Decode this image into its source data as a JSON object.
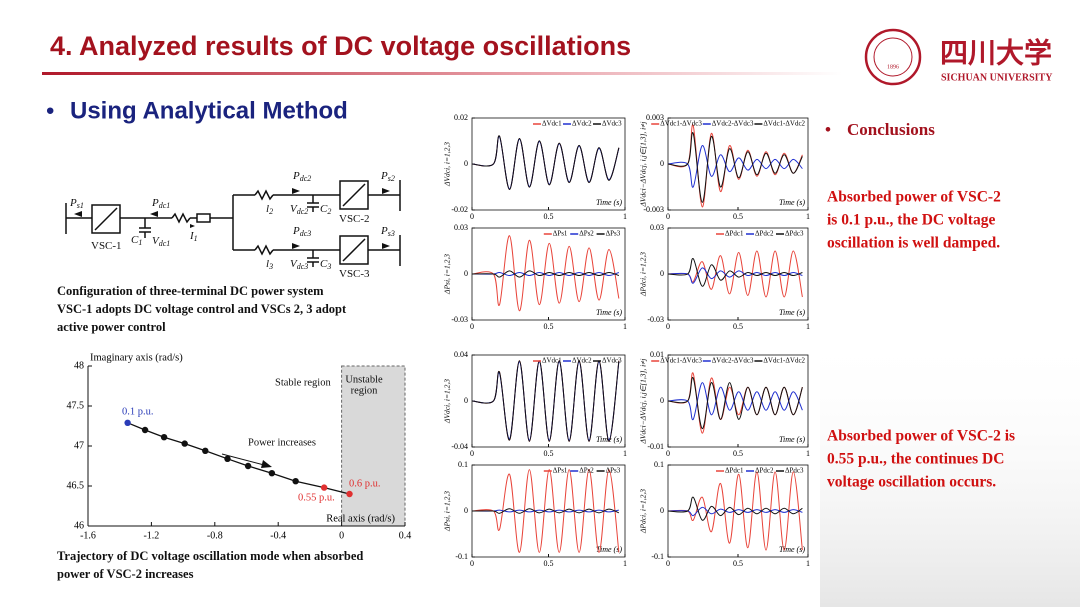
{
  "header": {
    "title": "4. Analyzed results of DC voltage oscillations",
    "logo_cn": "四川大学",
    "logo_en": "SICHUAN UNIVERSITY",
    "seal_year": "1896"
  },
  "bullet": "Using Analytical Method",
  "circuit": {
    "labels": [
      {
        "base": "P",
        "sub": "s1"
      },
      {
        "base": "P",
        "sub": "dc1"
      },
      {
        "base": "C",
        "sub": "1"
      },
      {
        "base": "V",
        "sub": "dc1"
      },
      {
        "base": "I",
        "sub": "1"
      },
      {
        "base": "VSC-1"
      },
      {
        "base": "P",
        "sub": "dc2"
      },
      {
        "base": "P",
        "sub": "s2"
      },
      {
        "base": "l",
        "sub": "2"
      },
      {
        "base": "V",
        "sub": "dc2"
      },
      {
        "base": "C",
        "sub": "2"
      },
      {
        "base": "VSC-2"
      },
      {
        "base": "P",
        "sub": "dc3"
      },
      {
        "base": "P",
        "sub": "s3"
      },
      {
        "base": "l",
        "sub": "3"
      },
      {
        "base": "V",
        "sub": "dc3"
      },
      {
        "base": "C",
        "sub": "3"
      },
      {
        "base": "VSC-3"
      }
    ]
  },
  "config_caption": [
    "Configuration of three-terminal DC power system",
    "VSC-1 adopts DC voltage control and VSCs 2, 3 adopt",
    "active power control"
  ],
  "trajectory_caption": [
    "Trajectory of DC voltage oscillation mode when absorbed",
    "power of VSC-2 increases"
  ],
  "conclusions": {
    "heading": "Conclusions",
    "first": [
      "Absorbed power of VSC-2",
      "is 0.1 p.u., the DC voltage",
      "oscillation is well damped."
    ],
    "second": [
      "Absorbed power of VSC-2 is",
      "0.55 p.u., the continues DC",
      "voltage oscillation occurs."
    ]
  },
  "chart_data": [
    {
      "type": "scatter",
      "ylabel": "Imaginary axis (rad/s)",
      "xlabel": "Real axis (rad/s)",
      "x": [
        -1.35,
        -1.24,
        -1.12,
        -0.99,
        -0.86,
        -0.72,
        -0.59,
        -0.44,
        -0.29,
        -0.11,
        0.05
      ],
      "values": [
        47.29,
        47.2,
        47.11,
        47.03,
        46.94,
        46.84,
        46.75,
        46.66,
        46.56,
        46.48,
        46.4
      ],
      "point_colors": [
        "#2a3cb8",
        "#111111",
        "#111111",
        "#111111",
        "#111111",
        "#111111",
        "#111111",
        "#111111",
        "#111111",
        "#e03030",
        "#e03030"
      ],
      "xlim": [
        -1.6,
        0.4
      ],
      "ylim": [
        46,
        48
      ],
      "xticks": [
        -1.6,
        -1.2,
        -0.8,
        -0.4,
        0,
        0.4
      ],
      "yticks": [
        46,
        46.5,
        47,
        47.5,
        48
      ],
      "unstable_from": 0,
      "annotations": [
        "Stable region",
        "Unstable",
        "region",
        "Power increases",
        "0.1 p.u.",
        "0.55 p.u.",
        "0.6 p.u."
      ]
    },
    {
      "type": "line",
      "ylabel": "ΔVdci, i=1,2,3",
      "xlabel": "Time (s)",
      "xlim": [
        0,
        1
      ],
      "xticks": [
        0,
        0.5,
        1
      ],
      "ylim": [
        -0.02,
        0.02
      ],
      "yticks": [
        -0.02,
        0,
        0.02
      ],
      "x": [
        0,
        0.14,
        0.18,
        0.245,
        0.31,
        0.375,
        0.44,
        0.505,
        0.57,
        0.635,
        0.7,
        0.765,
        0.83,
        0.895,
        0.96
      ],
      "series": [
        {
          "name": "ΔVdc1",
          "color": "#e8443a",
          "values": [
            0,
            0,
            0.012,
            -0.011,
            0.011,
            -0.01,
            0.01,
            -0.009,
            0.009,
            -0.008,
            0.008,
            -0.008,
            0.007,
            -0.007,
            0.007
          ]
        },
        {
          "name": "ΔVdc2",
          "color": "#2030d0",
          "values": [
            0,
            0,
            0.0118,
            -0.0108,
            0.0108,
            -0.0098,
            0.0098,
            -0.0088,
            0.0088,
            -0.0078,
            0.0078,
            -0.0078,
            0.0068,
            -0.0068,
            0.0068
          ]
        },
        {
          "name": "ΔVdc3",
          "color": "#111111",
          "values": [
            0,
            0,
            0.0121,
            -0.0111,
            0.0111,
            -0.0101,
            0.0101,
            -0.0091,
            0.0091,
            -0.0081,
            0.0081,
            -0.0081,
            0.0071,
            -0.0071,
            0.0071
          ]
        }
      ]
    },
    {
      "type": "line",
      "ylabel": "ΔVdci−ΔVdcj, i,j∈[1,3], i≠j",
      "xlabel": "Time (s)",
      "xlim": [
        0,
        1
      ],
      "xticks": [
        0,
        0.5,
        1
      ],
      "ylim": [
        -0.003,
        0.003
      ],
      "yticks": [
        -0.003,
        0,
        0.003
      ],
      "x": [
        0,
        0.14,
        0.18,
        0.245,
        0.31,
        0.375,
        0.44,
        0.505,
        0.57,
        0.635,
        0.7,
        0.765,
        0.83,
        0.895,
        0.96
      ],
      "series": [
        {
          "name": "ΔVdc1-ΔVdc3",
          "color": "#e8443a",
          "values": [
            0,
            0,
            0.0025,
            -0.0028,
            0.002,
            -0.0018,
            0.0012,
            -0.001,
            0.0009,
            -0.0008,
            0.0008,
            -0.0007,
            0.0007,
            -0.0006,
            0.0006
          ]
        },
        {
          "name": "ΔVdc2-ΔVdc3",
          "color": "#2030d0",
          "values": [
            0,
            0,
            -0.0015,
            0.0012,
            -0.0008,
            0.0006,
            -0.0005,
            0.0004,
            -0.0004,
            0.0003,
            -0.0003,
            0.0003,
            -0.0003,
            0.0003,
            -0.0003
          ]
        },
        {
          "name": "ΔVdc1-ΔVdc2",
          "color": "#111111",
          "values": [
            0,
            0,
            0.002,
            -0.0025,
            0.0018,
            -0.0015,
            0.001,
            -0.0009,
            0.0008,
            -0.0007,
            0.0007,
            -0.0006,
            0.0006,
            -0.0006,
            0.0005
          ]
        }
      ]
    },
    {
      "type": "line",
      "ylabel": "ΔPsi, i=1,2,3",
      "xlabel": "Time (s)",
      "xlim": [
        0,
        1
      ],
      "xticks": [
        0,
        0.5,
        1
      ],
      "ylim": [
        -0.03,
        0.03
      ],
      "yticks": [
        -0.03,
        0,
        0.03
      ],
      "x": [
        0,
        0.14,
        0.18,
        0.245,
        0.31,
        0.375,
        0.44,
        0.505,
        0.57,
        0.635,
        0.7,
        0.765,
        0.83,
        0.895,
        0.96
      ],
      "series": [
        {
          "name": "ΔPs1",
          "color": "#e8443a",
          "values": [
            0,
            0,
            -0.02,
            0.025,
            -0.024,
            0.022,
            -0.02,
            0.02,
            -0.019,
            0.018,
            -0.018,
            0.017,
            -0.017,
            0.016,
            -0.016
          ]
        },
        {
          "name": "ΔPs2",
          "color": "#2030d0",
          "values": [
            0,
            0,
            0.001,
            -0.001,
            0.001,
            -0.001,
            0.001,
            -0.001,
            0.001,
            -0.001,
            0.001,
            -0.001,
            0.001,
            -0.001,
            0.001
          ]
        },
        {
          "name": "ΔPs3",
          "color": "#111111",
          "values": [
            0,
            0,
            -0.002,
            0.002,
            -0.002,
            0.002,
            -0.001,
            0.001,
            -0.001,
            0.001,
            -0.001,
            0.001,
            -0.001,
            0.001,
            -0.001
          ]
        }
      ]
    },
    {
      "type": "line",
      "ylabel": "ΔPdci, i=1,2,3",
      "xlabel": "Time (s)",
      "xlim": [
        0,
        1
      ],
      "xticks": [
        0,
        0.5,
        1
      ],
      "ylim": [
        -0.03,
        0.03
      ],
      "yticks": [
        -0.03,
        0,
        0.03
      ],
      "x": [
        0,
        0.14,
        0.18,
        0.245,
        0.31,
        0.375,
        0.44,
        0.505,
        0.57,
        0.635,
        0.7,
        0.765,
        0.83,
        0.895,
        0.96
      ],
      "series": [
        {
          "name": "ΔPdc1",
          "color": "#e8443a",
          "values": [
            0,
            0,
            -0.005,
            0.008,
            -0.01,
            0.012,
            -0.013,
            0.014,
            -0.014,
            0.015,
            -0.015,
            0.015,
            -0.015,
            0.015,
            -0.015
          ]
        },
        {
          "name": "ΔPdc2",
          "color": "#2030d0",
          "values": [
            0,
            0,
            -0.006,
            0.004,
            -0.003,
            0.002,
            -0.002,
            0.002,
            -0.001,
            0.001,
            -0.001,
            0.001,
            -0.001,
            0.001,
            -0.001
          ]
        },
        {
          "name": "ΔPdc3",
          "color": "#111111",
          "values": [
            0,
            0,
            0.01,
            -0.008,
            0.006,
            -0.004,
            0.002,
            -0.002,
            0.001,
            -0.001,
            0.001,
            -0.001,
            0.001,
            -0.001,
            0.001
          ]
        }
      ]
    },
    {
      "type": "line",
      "ylabel": "ΔVdci, i=1,2,3",
      "xlabel": "Time (s)",
      "xlim": [
        0,
        1
      ],
      "xticks": [
        0,
        0.5,
        1
      ],
      "ylim": [
        -0.04,
        0.04
      ],
      "yticks": [
        -0.04,
        0,
        0.04
      ],
      "x": [
        0,
        0.14,
        0.18,
        0.245,
        0.31,
        0.375,
        0.44,
        0.505,
        0.57,
        0.635,
        0.7,
        0.765,
        0.83,
        0.895,
        0.96
      ],
      "series": [
        {
          "name": "ΔVdc1",
          "color": "#e8443a",
          "values": [
            0,
            0,
            0.025,
            -0.034,
            0.035,
            -0.035,
            0.035,
            -0.035,
            0.035,
            -0.035,
            0.035,
            -0.035,
            0.035,
            -0.035,
            0.035
          ]
        },
        {
          "name": "ΔVdc2",
          "color": "#2030d0",
          "values": [
            0,
            0,
            0.024,
            -0.033,
            0.034,
            -0.034,
            0.034,
            -0.034,
            0.034,
            -0.034,
            0.034,
            -0.034,
            0.034,
            -0.034,
            0.034
          ]
        },
        {
          "name": "ΔVdc3",
          "color": "#111111",
          "values": [
            0,
            0,
            0.025,
            -0.034,
            0.035,
            -0.035,
            0.035,
            -0.035,
            0.035,
            -0.035,
            0.035,
            -0.035,
            0.035,
            -0.035,
            0.035
          ]
        }
      ]
    },
    {
      "type": "line",
      "ylabel": "ΔVdci−ΔVdcj, i,j∈[1,3], i≠j",
      "xlabel": "Time (s)",
      "xlim": [
        0,
        1
      ],
      "xticks": [
        0,
        0.5,
        1
      ],
      "ylim": [
        -0.01,
        0.01
      ],
      "yticks": [
        -0.01,
        0,
        0.01
      ],
      "x": [
        0,
        0.14,
        0.18,
        0.245,
        0.31,
        0.375,
        0.44,
        0.505,
        0.57,
        0.635,
        0.7,
        0.765,
        0.83,
        0.895,
        0.96
      ],
      "series": [
        {
          "name": "ΔVdc1-ΔVdc3",
          "color": "#e8443a",
          "values": [
            0,
            0,
            0.006,
            -0.007,
            0.005,
            -0.004,
            0.003,
            -0.003,
            0.003,
            -0.003,
            0.003,
            -0.003,
            0.003,
            -0.003,
            0.003
          ]
        },
        {
          "name": "ΔVdc2-ΔVdc3",
          "color": "#2030d0",
          "values": [
            0,
            0,
            -0.004,
            0.004,
            -0.003,
            0.003,
            -0.002,
            0.002,
            -0.002,
            0.002,
            -0.002,
            0.002,
            -0.002,
            0.002,
            -0.002
          ]
        },
        {
          "name": "ΔVdc1-ΔVdc2",
          "color": "#111111",
          "values": [
            0,
            0,
            0.005,
            -0.006,
            0.004,
            -0.004,
            0.004,
            -0.004,
            0.003,
            -0.003,
            0.003,
            -0.003,
            0.003,
            -0.003,
            0.003
          ]
        }
      ]
    },
    {
      "type": "line",
      "ylabel": "ΔPsi, i=1,2,3",
      "xlabel": "Time (s)",
      "xlim": [
        0,
        1
      ],
      "xticks": [
        0,
        0.5,
        1
      ],
      "ylim": [
        -0.1,
        0.1
      ],
      "yticks": [
        -0.1,
        0,
        0.1
      ],
      "x": [
        0,
        0.14,
        0.18,
        0.245,
        0.31,
        0.375,
        0.44,
        0.505,
        0.57,
        0.635,
        0.7,
        0.765,
        0.83,
        0.895,
        0.96
      ],
      "series": [
        {
          "name": "ΔPs1",
          "color": "#e8443a",
          "values": [
            0,
            0,
            -0.04,
            0.08,
            -0.09,
            0.09,
            -0.09,
            0.09,
            -0.09,
            0.09,
            -0.09,
            0.09,
            -0.09,
            0.09,
            -0.09
          ]
        },
        {
          "name": "ΔPs2",
          "color": "#2030d0",
          "values": [
            0,
            0,
            0.002,
            -0.002,
            0.002,
            -0.002,
            0.002,
            -0.002,
            0.002,
            -0.002,
            0.002,
            -0.002,
            0.002,
            -0.002,
            0.002
          ]
        },
        {
          "name": "ΔPs3",
          "color": "#111111",
          "values": [
            0,
            0,
            -0.005,
            0.005,
            -0.005,
            0.005,
            -0.004,
            0.004,
            -0.004,
            0.004,
            -0.004,
            0.004,
            -0.004,
            0.004,
            -0.004
          ]
        }
      ]
    },
    {
      "type": "line",
      "ylabel": "ΔPdci, i=1,2,3",
      "xlabel": "Time (s)",
      "xlim": [
        0,
        1
      ],
      "xticks": [
        0,
        0.5,
        1
      ],
      "ylim": [
        -0.1,
        0.1
      ],
      "yticks": [
        -0.1,
        0,
        0.1
      ],
      "x": [
        0,
        0.14,
        0.18,
        0.245,
        0.31,
        0.375,
        0.44,
        0.505,
        0.57,
        0.635,
        0.7,
        0.765,
        0.83,
        0.895,
        0.96
      ],
      "series": [
        {
          "name": "ΔPdc1",
          "color": "#e8443a",
          "values": [
            0,
            0,
            -0.02,
            0.03,
            -0.045,
            0.06,
            -0.07,
            0.08,
            -0.08,
            0.085,
            -0.085,
            0.085,
            -0.085,
            0.085,
            -0.085
          ]
        },
        {
          "name": "ΔPdc2",
          "color": "#2030d0",
          "values": [
            0,
            0,
            -0.01,
            0.008,
            -0.006,
            0.004,
            -0.003,
            0.003,
            -0.003,
            0.003,
            -0.003,
            0.003,
            -0.003,
            0.003,
            -0.003
          ]
        },
        {
          "name": "ΔPdc3",
          "color": "#111111",
          "values": [
            0,
            0,
            0.03,
            -0.02,
            0.01,
            -0.01,
            0.008,
            -0.008,
            0.006,
            -0.006,
            0.006,
            -0.006,
            0.006,
            -0.006,
            0.006
          ]
        }
      ]
    }
  ]
}
